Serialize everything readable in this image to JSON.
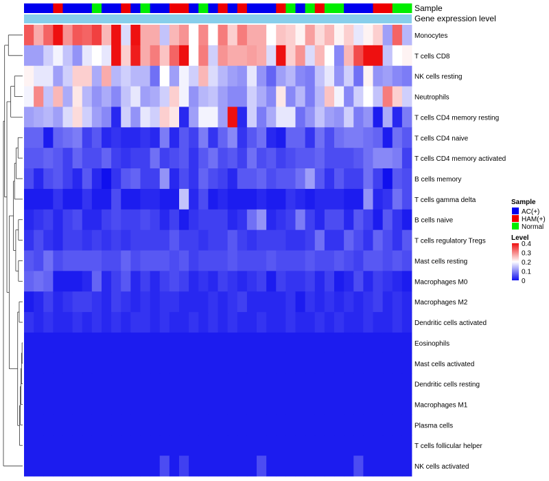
{
  "chart_data": {
    "type": "heatmap",
    "annotation_rows": [
      "Sample",
      "Gene expression level"
    ],
    "sample_groups": [
      "AC",
      "AC",
      "AC",
      "HAM",
      "AC",
      "AC",
      "AC",
      "N",
      "AC",
      "AC",
      "HAM",
      "AC",
      "N",
      "AC",
      "AC",
      "HAM",
      "HAM",
      "AC",
      "N",
      "AC",
      "HAM",
      "AC",
      "HAM",
      "AC",
      "AC",
      "AC",
      "HAM",
      "N",
      "AC",
      "N",
      "HAM",
      "N",
      "N",
      "AC",
      "AC",
      "AC",
      "HAM",
      "HAM",
      "N",
      "N"
    ],
    "row_labels": [
      "Monocytes",
      "T cells CD8",
      "NK cells resting",
      "Neutrophils",
      "T cells CD4 memory resting",
      "T cells CD4 naive",
      "T cells CD4 memory activated",
      "B cells memory",
      "T cells gamma delta",
      "B cells naive",
      "T cells regulatory  Tregs",
      "Mast cells resting",
      "Macrophages M0",
      "Macrophages M2",
      "Dendritic cells activated",
      "Eosinophils",
      "Mast cells activated",
      "Dendritic cells resting",
      "Macrophages M1",
      "Plasma cells",
      "T cells follicular helper",
      "NK cells activated"
    ],
    "values": [
      [
        0.34,
        0.27,
        0.33,
        0.4,
        0.29,
        0.34,
        0.33,
        0.36,
        0.26,
        0.4,
        0.17,
        0.4,
        0.27,
        0.27,
        0.15,
        0.26,
        0.29,
        0.2,
        0.3,
        0.2,
        0.31,
        0.24,
        0.31,
        0.27,
        0.27,
        0.2,
        0.25,
        0.24,
        0.21,
        0.28,
        0.23,
        0.26,
        0.21,
        0.24,
        0.18,
        0.21,
        0.24,
        0.12,
        0.33,
        0.14
      ],
      [
        0.12,
        0.12,
        0.16,
        0.19,
        0.15,
        0.11,
        0.18,
        0.2,
        0.18,
        0.42,
        0.24,
        0.39,
        0.27,
        0.31,
        0.25,
        0.33,
        0.4,
        0.2,
        0.31,
        0.16,
        0.29,
        0.27,
        0.27,
        0.28,
        0.27,
        0.17,
        0.41,
        0.24,
        0.29,
        0.17,
        0.26,
        0.2,
        0.1,
        0.26,
        0.35,
        0.4,
        0.43,
        0.15,
        0.2,
        0.21
      ],
      [
        0.21,
        0.18,
        0.18,
        0.12,
        0.16,
        0.24,
        0.24,
        0.13,
        0.27,
        0.14,
        0.16,
        0.14,
        0.14,
        0.08,
        0.2,
        0.12,
        0.19,
        0.16,
        0.26,
        0.17,
        0.14,
        0.12,
        0.11,
        0.18,
        0.11,
        0.07,
        0.12,
        0.14,
        0.1,
        0.09,
        0.15,
        0.18,
        0.11,
        0.16,
        0.08,
        0.21,
        0.11,
        0.12,
        0.1,
        0.09
      ],
      [
        0.19,
        0.3,
        0.15,
        0.26,
        0.13,
        0.22,
        0.14,
        0.11,
        0.13,
        0.1,
        0.15,
        0.18,
        0.12,
        0.13,
        0.16,
        0.24,
        0.19,
        0.11,
        0.14,
        0.15,
        0.12,
        0.1,
        0.1,
        0.16,
        0.13,
        0.1,
        0.22,
        0.1,
        0.14,
        0.09,
        0.14,
        0.25,
        0.19,
        0.1,
        0.16,
        0.2,
        0.15,
        0.31,
        0.24,
        0.16
      ],
      [
        0.12,
        0.13,
        0.14,
        0.12,
        0.17,
        0.23,
        0.16,
        0.12,
        0.1,
        0.02,
        0.16,
        0.11,
        0.18,
        0.16,
        0.24,
        0.22,
        0.02,
        0.12,
        0.19,
        0.19,
        0.12,
        0.43,
        0.02,
        0.16,
        0.09,
        0.13,
        0.18,
        0.18,
        0.08,
        0.11,
        0.15,
        0.12,
        0.11,
        0.16,
        0.09,
        0.11,
        0.01,
        0.13,
        0.02,
        0.09
      ],
      [
        0.07,
        0.07,
        0.01,
        0.07,
        0.08,
        0.09,
        0.04,
        0.06,
        0.02,
        0.03,
        0.02,
        0.02,
        0.03,
        0.02,
        0.09,
        0.02,
        0.06,
        0.04,
        0.09,
        0.03,
        0.07,
        0.1,
        0.03,
        0.06,
        0.08,
        0.02,
        0.01,
        0.07,
        0.07,
        0.03,
        0.08,
        0.05,
        0.08,
        0.09,
        0.09,
        0.08,
        0.07,
        0.01,
        0.08,
        0.06
      ],
      [
        0.06,
        0.06,
        0.07,
        0.06,
        0.04,
        0.07,
        0.05,
        0.05,
        0.07,
        0.04,
        0.03,
        0.04,
        0.04,
        0.08,
        0.04,
        0.05,
        0.06,
        0.03,
        0.06,
        0.08,
        0.05,
        0.06,
        0.04,
        0.08,
        0.05,
        0.06,
        0.04,
        0.05,
        0.06,
        0.06,
        0.07,
        0.05,
        0.05,
        0.05,
        0.06,
        0.08,
        0.1,
        0.1,
        0.09,
        0.04
      ],
      [
        0.05,
        0.02,
        0.05,
        0.06,
        0.04,
        0.02,
        0.06,
        0.02,
        0.0,
        0.03,
        0.06,
        0.07,
        0.04,
        0.04,
        0.11,
        0.02,
        0.05,
        0.03,
        0.07,
        0.05,
        0.04,
        0.02,
        0.06,
        0.06,
        0.07,
        0.05,
        0.06,
        0.06,
        0.08,
        0.12,
        0.06,
        0.03,
        0.06,
        0.04,
        0.04,
        0.08,
        0.04,
        0.0,
        0.06,
        0.05
      ],
      [
        0.01,
        0.01,
        0.01,
        0.03,
        0.01,
        0.01,
        0.03,
        0.01,
        0.01,
        0.05,
        0.01,
        0.01,
        0.02,
        0.02,
        0.01,
        0.01,
        0.15,
        0.02,
        0.05,
        0.01,
        0.02,
        0.01,
        0.01,
        0.01,
        0.02,
        0.01,
        0.01,
        0.03,
        0.02,
        0.01,
        0.02,
        0.02,
        0.02,
        0.01,
        0.01,
        0.11,
        0.02,
        0.03,
        0.08,
        0.05
      ],
      [
        0.02,
        0.03,
        0.04,
        0.02,
        0.04,
        0.05,
        0.02,
        0.02,
        0.04,
        0.05,
        0.04,
        0.04,
        0.05,
        0.04,
        0.02,
        0.04,
        0.01,
        0.03,
        0.04,
        0.04,
        0.04,
        0.02,
        0.03,
        0.08,
        0.11,
        0.02,
        0.03,
        0.04,
        0.09,
        0.04,
        0.02,
        0.05,
        0.05,
        0.02,
        0.06,
        0.04,
        0.01,
        0.06,
        0.03,
        0.01
      ],
      [
        0.03,
        0.05,
        0.03,
        0.02,
        0.04,
        0.04,
        0.03,
        0.04,
        0.03,
        0.04,
        0.03,
        0.04,
        0.04,
        0.04,
        0.04,
        0.06,
        0.04,
        0.04,
        0.03,
        0.04,
        0.04,
        0.06,
        0.04,
        0.03,
        0.04,
        0.04,
        0.04,
        0.03,
        0.03,
        0.04,
        0.08,
        0.03,
        0.03,
        0.07,
        0.05,
        0.03,
        0.07,
        0.05,
        0.03,
        0.06
      ],
      [
        0.06,
        0.05,
        0.08,
        0.05,
        0.06,
        0.06,
        0.06,
        0.06,
        0.05,
        0.05,
        0.07,
        0.05,
        0.06,
        0.06,
        0.06,
        0.05,
        0.06,
        0.04,
        0.05,
        0.05,
        0.05,
        0.06,
        0.05,
        0.05,
        0.05,
        0.06,
        0.05,
        0.05,
        0.05,
        0.06,
        0.05,
        0.05,
        0.06,
        0.05,
        0.04,
        0.06,
        0.06,
        0.05,
        0.06,
        0.05
      ],
      [
        0.07,
        0.08,
        0.07,
        0.01,
        0.01,
        0.01,
        0.02,
        0.07,
        0.02,
        0.04,
        0.06,
        0.02,
        0.04,
        0.02,
        0.04,
        0.05,
        0.04,
        0.02,
        0.03,
        0.02,
        0.04,
        0.03,
        0.02,
        0.03,
        0.04,
        0.01,
        0.04,
        0.03,
        0.03,
        0.04,
        0.02,
        0.04,
        0.01,
        0.02,
        0.05,
        0.02,
        0.04,
        0.03,
        0.02,
        0.01
      ],
      [
        0.01,
        0.02,
        0.04,
        0.02,
        0.03,
        0.04,
        0.04,
        0.03,
        0.02,
        0.04,
        0.03,
        0.02,
        0.03,
        0.02,
        0.03,
        0.03,
        0.02,
        0.02,
        0.02,
        0.03,
        0.02,
        0.03,
        0.04,
        0.02,
        0.02,
        0.02,
        0.02,
        0.03,
        0.01,
        0.03,
        0.02,
        0.03,
        0.02,
        0.03,
        0.02,
        0.03,
        0.04,
        0.02,
        0.03,
        0.02
      ],
      [
        0.03,
        0.02,
        0.03,
        0.02,
        0.02,
        0.03,
        0.02,
        0.03,
        0.02,
        0.03,
        0.02,
        0.03,
        0.03,
        0.02,
        0.03,
        0.02,
        0.02,
        0.03,
        0.02,
        0.03,
        0.02,
        0.03,
        0.02,
        0.02,
        0.03,
        0.02,
        0.02,
        0.03,
        0.02,
        0.02,
        0.03,
        0.02,
        0.03,
        0.02,
        0.02,
        0.03,
        0.02,
        0.02,
        0.03,
        0.02
      ],
      [
        0.01,
        0.01,
        0.01,
        0.01,
        0.01,
        0.01,
        0.01,
        0.01,
        0.01,
        0.01,
        0.01,
        0.01,
        0.01,
        0.01,
        0.01,
        0.01,
        0.01,
        0.01,
        0.01,
        0.01,
        0.01,
        0.01,
        0.01,
        0.01,
        0.01,
        0.01,
        0.01,
        0.01,
        0.01,
        0.01,
        0.01,
        0.01,
        0.01,
        0.01,
        0.01,
        0.01,
        0.01,
        0.01,
        0.01,
        0.01
      ],
      [
        0.01,
        0.01,
        0.01,
        0.01,
        0.01,
        0.01,
        0.01,
        0.01,
        0.01,
        0.01,
        0.01,
        0.01,
        0.01,
        0.01,
        0.01,
        0.01,
        0.01,
        0.01,
        0.01,
        0.01,
        0.01,
        0.01,
        0.01,
        0.01,
        0.01,
        0.01,
        0.01,
        0.01,
        0.01,
        0.01,
        0.01,
        0.01,
        0.01,
        0.01,
        0.01,
        0.01,
        0.01,
        0.01,
        0.01,
        0.01
      ],
      [
        0.01,
        0.01,
        0.01,
        0.01,
        0.01,
        0.01,
        0.01,
        0.01,
        0.01,
        0.01,
        0.01,
        0.01,
        0.01,
        0.01,
        0.01,
        0.01,
        0.01,
        0.01,
        0.01,
        0.01,
        0.01,
        0.01,
        0.01,
        0.01,
        0.01,
        0.01,
        0.01,
        0.01,
        0.01,
        0.01,
        0.01,
        0.01,
        0.01,
        0.01,
        0.01,
        0.01,
        0.01,
        0.01,
        0.01,
        0.01
      ],
      [
        0.01,
        0.01,
        0.01,
        0.01,
        0.01,
        0.01,
        0.01,
        0.01,
        0.01,
        0.01,
        0.01,
        0.01,
        0.01,
        0.01,
        0.01,
        0.01,
        0.01,
        0.01,
        0.01,
        0.01,
        0.01,
        0.01,
        0.01,
        0.01,
        0.01,
        0.01,
        0.01,
        0.01,
        0.01,
        0.01,
        0.01,
        0.01,
        0.01,
        0.01,
        0.01,
        0.01,
        0.01,
        0.01,
        0.01,
        0.01
      ],
      [
        0.01,
        0.01,
        0.01,
        0.01,
        0.01,
        0.01,
        0.01,
        0.01,
        0.01,
        0.01,
        0.01,
        0.01,
        0.01,
        0.01,
        0.01,
        0.01,
        0.01,
        0.01,
        0.01,
        0.01,
        0.01,
        0.01,
        0.01,
        0.01,
        0.01,
        0.01,
        0.01,
        0.01,
        0.01,
        0.01,
        0.01,
        0.01,
        0.01,
        0.01,
        0.01,
        0.01,
        0.01,
        0.01,
        0.01,
        0.01
      ],
      [
        0.01,
        0.01,
        0.01,
        0.01,
        0.01,
        0.01,
        0.01,
        0.01,
        0.01,
        0.01,
        0.01,
        0.01,
        0.01,
        0.01,
        0.01,
        0.01,
        0.01,
        0.01,
        0.01,
        0.01,
        0.01,
        0.01,
        0.01,
        0.01,
        0.01,
        0.01,
        0.01,
        0.01,
        0.01,
        0.01,
        0.01,
        0.01,
        0.01,
        0.01,
        0.01,
        0.01,
        0.01,
        0.01,
        0.01,
        0.01
      ],
      [
        0.01,
        0.01,
        0.01,
        0.01,
        0.01,
        0.01,
        0.01,
        0.01,
        0.01,
        0.01,
        0.01,
        0.01,
        0.01,
        0.01,
        0.05,
        0.01,
        0.04,
        0.01,
        0.01,
        0.01,
        0.01,
        0.01,
        0.01,
        0.01,
        0.05,
        0.01,
        0.01,
        0.01,
        0.01,
        0.01,
        0.01,
        0.01,
        0.01,
        0.01,
        0.05,
        0.01,
        0.01,
        0.01,
        0.01,
        0.01
      ]
    ],
    "color_scale": {
      "min": 0,
      "mid": 0.2,
      "max": 0.4,
      "low": "#1010ee",
      "midcolor": "#ffffff",
      "high": "#ee1010"
    },
    "legend": {
      "sample": {
        "title": "Sample",
        "entries": [
          {
            "key": "AC",
            "label": "AC(+)",
            "color": "#0000ee"
          },
          {
            "key": "HAM",
            "label": "HAM(+)",
            "color": "#ee0000"
          },
          {
            "key": "N",
            "label": "Normal",
            "color": "#00ee00"
          }
        ]
      },
      "level": {
        "title": "Level",
        "ticks": [
          {
            "value": 0.4,
            "label": "0.4"
          },
          {
            "value": 0.3,
            "label": "0.3"
          },
          {
            "value": 0.2,
            "label": "0.2"
          },
          {
            "value": 0.1,
            "label": "0.1"
          },
          {
            "value": 0,
            "label": "0"
          }
        ]
      }
    },
    "annotation_colors": {
      "expression_bar": "#87ceeb"
    },
    "dendrogram": {
      "type": "row",
      "merges": [
        [
          -16,
          -17
        ],
        [
          1,
          -18
        ],
        [
          2,
          -19
        ],
        [
          3,
          -20
        ],
        [
          4,
          -21
        ],
        [
          -14,
          -15
        ],
        [
          5,
          6
        ],
        [
          -12,
          -13
        ],
        [
          -10,
          -11
        ],
        [
          8,
          9
        ],
        [
          -6,
          -7
        ],
        [
          11,
          -8
        ],
        [
          -9,
          12
        ],
        [
          10,
          13
        ],
        [
          14,
          7
        ],
        [
          -3,
          -4
        ],
        [
          16,
          -5
        ],
        [
          17,
          15
        ],
        [
          -1,
          -2
        ],
        [
          19,
          18
        ],
        [
          20,
          -22
        ]
      ],
      "heights": [
        0.03,
        0.06,
        0.09,
        0.12,
        0.16,
        0.18,
        0.26,
        0.22,
        0.22,
        0.36,
        0.24,
        0.34,
        0.42,
        0.48,
        0.7,
        0.42,
        0.62,
        0.82,
        0.74,
        0.94,
        1.0
      ]
    }
  }
}
